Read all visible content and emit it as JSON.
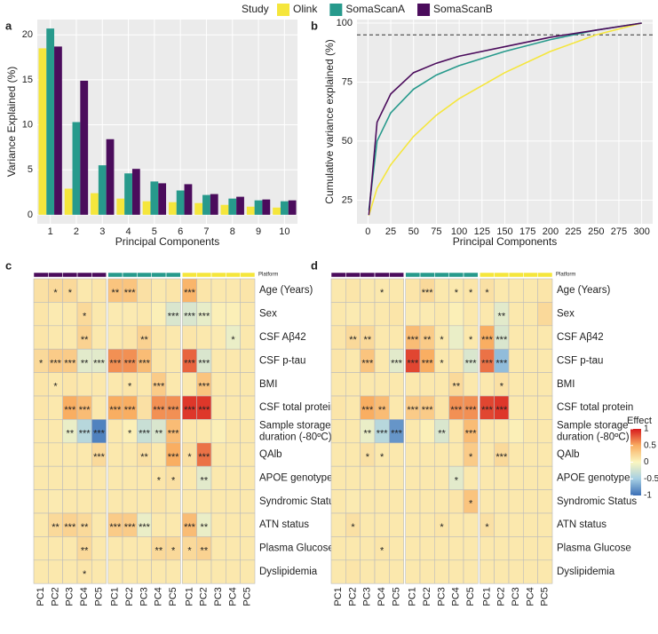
{
  "chart_data": [
    {
      "type": "bar",
      "panel_label": "a",
      "legend_title": "Study",
      "xlabel": "Principal Components",
      "ylabel": "Variance Explained (%)",
      "categories": [
        "1",
        "2",
        "3",
        "4",
        "5",
        "6",
        "7",
        "8",
        "9",
        "10"
      ],
      "series": [
        {
          "name": "Olink",
          "color": "#f5e63c",
          "values": [
            18.5,
            2.9,
            2.4,
            1.8,
            1.5,
            1.4,
            1.3,
            1.1,
            0.9,
            0.8
          ]
        },
        {
          "name": "SomaScanA",
          "color": "#279a8c",
          "values": [
            20.7,
            10.3,
            5.5,
            4.6,
            3.7,
            2.7,
            2.2,
            1.8,
            1.6,
            1.5
          ]
        },
        {
          "name": "SomaScanB",
          "color": "#4b0c5c",
          "values": [
            18.7,
            14.9,
            8.4,
            5.1,
            3.5,
            3.4,
            2.3,
            2.0,
            1.7,
            1.6
          ]
        }
      ],
      "ylim": [
        -1,
        21.7
      ],
      "yticks": [
        0,
        5,
        10,
        15,
        20
      ],
      "grid": true
    },
    {
      "type": "line",
      "panel_label": "b",
      "xlabel": "Principal Components",
      "ylabel": "Cumulative variance explained (%)",
      "x": [
        1,
        10,
        25,
        50,
        75,
        100,
        150,
        200,
        250,
        300
      ],
      "series": [
        {
          "name": "Olink",
          "color": "#f5e63c",
          "values": [
            18.5,
            30,
            40,
            52,
            61,
            68,
            79,
            88,
            95,
            100
          ]
        },
        {
          "name": "SomaScanA",
          "color": "#279a8c",
          "values": [
            20.7,
            50,
            62,
            72,
            78,
            82,
            88,
            93,
            97,
            100
          ]
        },
        {
          "name": "SomaScanB",
          "color": "#4b0c5c",
          "values": [
            18.7,
            58,
            70,
            79,
            83,
            86,
            90,
            94,
            97,
            100
          ]
        }
      ],
      "hline": 95,
      "xlim": [
        -12,
        312
      ],
      "ylim": [
        15,
        101.5
      ],
      "xticks": [
        0,
        25,
        50,
        75,
        100,
        125,
        150,
        175,
        200,
        225,
        250,
        275,
        300
      ],
      "yticks": [
        25,
        50,
        75,
        100
      ],
      "grid": true
    },
    {
      "type": "heatmap",
      "panel_label": "c",
      "group_title": "Platform",
      "group_colors": [
        "#4b0c5c",
        "#279a8c",
        "#f5e63c"
      ],
      "columns": [
        "PC1",
        "PC2",
        "PC3",
        "PC4",
        "PC5",
        "PC1",
        "PC2",
        "PC3",
        "PC4",
        "PC5",
        "PC1",
        "PC2",
        "PC3",
        "PC4",
        "PC5"
      ],
      "rows": [
        "Age (Years)",
        "Sex",
        "CSF Aβ42",
        "CSF p-tau",
        "BMI",
        "CSF total protein",
        "Sample storage duration (-80ºC)",
        "QAlb",
        "APOE genotype",
        "Syndromic Status",
        "ATN status",
        "Plasma Glucose",
        "Dyslipidemia"
      ],
      "values": [
        [
          0.15,
          0.2,
          0.2,
          0.1,
          0.12,
          0.35,
          0.35,
          0.15,
          0.1,
          0.12,
          0.45,
          0.12,
          0.1,
          0.1,
          0.12
        ],
        [
          0.12,
          0.08,
          0.1,
          0.2,
          0.1,
          0.08,
          0.08,
          0.1,
          0.05,
          -0.2,
          -0.2,
          -0.12,
          0.05,
          0.05,
          0.1
        ],
        [
          0.12,
          0.1,
          0.1,
          0.25,
          0.1,
          0.1,
          0.12,
          0.25,
          0.12,
          0.1,
          0.12,
          0.1,
          0.08,
          -0.1,
          0.1
        ],
        [
          0.2,
          0.3,
          0.3,
          -0.15,
          -0.15,
          0.6,
          0.6,
          0.4,
          0.12,
          0.1,
          0.75,
          -0.2,
          0.1,
          0.1,
          0.1
        ],
        [
          0.12,
          0.1,
          0.12,
          0.1,
          0.1,
          0.1,
          0.12,
          0.1,
          0.3,
          0.1,
          0.1,
          0.35,
          0.1,
          0.1,
          0.1
        ],
        [
          0.12,
          0.1,
          0.5,
          0.4,
          0.1,
          0.5,
          0.5,
          0.15,
          0.6,
          0.6,
          0.9,
          0.9,
          0.1,
          0.1,
          0.1
        ],
        [
          0.1,
          0.1,
          -0.1,
          -0.4,
          -0.9,
          0.1,
          0.05,
          -0.3,
          -0.2,
          0.4,
          0.1,
          0.1,
          0.05,
          0.1,
          0.1
        ],
        [
          0.1,
          0.1,
          0.1,
          0.1,
          0.2,
          0.1,
          0.1,
          0.15,
          0.1,
          0.5,
          0.15,
          0.7,
          0.1,
          0.1,
          0.1
        ],
        [
          0.1,
          0.1,
          0.1,
          0.1,
          0.1,
          0.1,
          0.1,
          0.1,
          0.12,
          0.15,
          0.1,
          -0.15,
          0.1,
          0.1,
          0.1
        ],
        [
          0.1,
          0.08,
          0.1,
          0.1,
          0.1,
          0.1,
          0.1,
          0.1,
          0.12,
          0.1,
          0.1,
          0.1,
          0.1,
          0.1,
          0.1
        ],
        [
          0.1,
          0.2,
          0.25,
          0.2,
          0.1,
          0.3,
          0.3,
          -0.1,
          0.1,
          0.1,
          0.4,
          -0.1,
          0.1,
          0.1,
          0.1
        ],
        [
          0.1,
          0.1,
          0.1,
          0.2,
          0.1,
          0.1,
          0.1,
          0.1,
          0.2,
          0.2,
          0.2,
          0.25,
          0.1,
          0.1,
          0.1
        ],
        [
          0.1,
          0.1,
          0.1,
          0.12,
          0.1,
          0.1,
          0.1,
          0.1,
          0.1,
          0.1,
          0.1,
          0.1,
          0.1,
          0.1,
          0.1
        ]
      ],
      "stars": [
        [
          null,
          "*",
          "*",
          null,
          null,
          "**",
          "***",
          null,
          null,
          null,
          "***",
          null,
          null,
          null,
          null
        ],
        [
          null,
          null,
          null,
          "*",
          null,
          null,
          null,
          null,
          null,
          "***",
          "***",
          "***",
          null,
          null,
          null
        ],
        [
          null,
          null,
          null,
          "**",
          null,
          null,
          null,
          "**",
          null,
          null,
          null,
          null,
          null,
          "*",
          null
        ],
        [
          "*",
          "***",
          "***",
          "**",
          "***",
          "***",
          "***",
          "***",
          null,
          null,
          "***",
          "***",
          null,
          null,
          null
        ],
        [
          null,
          "*",
          null,
          null,
          null,
          null,
          "*",
          null,
          "***",
          null,
          null,
          "***",
          null,
          null,
          null
        ],
        [
          null,
          null,
          "***",
          "***",
          null,
          "***",
          "***",
          null,
          "***",
          "***",
          "***",
          "***",
          null,
          null,
          null
        ],
        [
          null,
          null,
          "**",
          "***",
          "***",
          null,
          "*",
          "***",
          "**",
          "***",
          null,
          null,
          null,
          null,
          null
        ],
        [
          null,
          null,
          null,
          null,
          "***",
          null,
          null,
          "**",
          null,
          "***",
          "*",
          "***",
          null,
          null,
          null
        ],
        [
          null,
          null,
          null,
          null,
          null,
          null,
          null,
          null,
          "*",
          "*",
          null,
          "**",
          null,
          null,
          null
        ],
        [
          null,
          null,
          null,
          null,
          null,
          null,
          null,
          null,
          null,
          null,
          null,
          null,
          null,
          null,
          null
        ],
        [
          null,
          "**",
          "***",
          "**",
          null,
          "***",
          "***",
          "***",
          null,
          null,
          "***",
          "**",
          null,
          null,
          null
        ],
        [
          null,
          null,
          null,
          "**",
          null,
          null,
          null,
          null,
          "**",
          "*",
          "*",
          "**",
          null,
          null,
          null
        ],
        [
          null,
          null,
          null,
          "*",
          null,
          null,
          null,
          null,
          null,
          null,
          null,
          null,
          null,
          null,
          null
        ]
      ]
    },
    {
      "type": "heatmap",
      "panel_label": "d",
      "group_title": "Platform",
      "group_colors": [
        "#4b0c5c",
        "#279a8c",
        "#f5e63c"
      ],
      "columns": [
        "PC1",
        "PC2",
        "PC3",
        "PC4",
        "PC5",
        "PC1",
        "PC2",
        "PC3",
        "PC4",
        "PC5",
        "PC1",
        "PC2",
        "PC3",
        "PC4",
        "PC5"
      ],
      "rows": [
        "Age (Years)",
        "Sex",
        "CSF Aβ42",
        "CSF p-tau",
        "BMI",
        "CSF total protein",
        "Sample storage duration (-80ºC)",
        "QAlb",
        "APOE genotype",
        "Syndromic Status",
        "ATN status",
        "Plasma Glucose",
        "Dyslipidemia"
      ],
      "values": [
        [
          0.1,
          0.12,
          0.1,
          0.1,
          0.1,
          0.12,
          0.2,
          0.1,
          0.1,
          0.12,
          0.15,
          0.1,
          0.1,
          0.1,
          0.12
        ],
        [
          0.1,
          0.08,
          0.1,
          0.1,
          0.12,
          0.08,
          0.08,
          0.1,
          0.05,
          0.1,
          0.1,
          -0.15,
          0.1,
          0.1,
          0.2
        ],
        [
          0.12,
          0.2,
          0.2,
          0.1,
          0.1,
          0.4,
          0.3,
          0.1,
          -0.1,
          0.1,
          0.5,
          -0.2,
          0.1,
          0.1,
          0.1
        ],
        [
          0.12,
          0.1,
          0.35,
          0.1,
          -0.15,
          0.85,
          0.5,
          0.1,
          0.1,
          -0.2,
          0.7,
          -0.6,
          0.1,
          0.1,
          0.1
        ],
        [
          0.1,
          0.1,
          0.1,
          0.1,
          0.1,
          0.1,
          0.1,
          0.1,
          0.2,
          0.1,
          0.1,
          0.15,
          0.1,
          0.1,
          0.1
        ],
        [
          0.12,
          0.1,
          0.5,
          0.4,
          0.1,
          0.3,
          0.3,
          0.12,
          0.6,
          0.6,
          0.85,
          0.9,
          0.1,
          0.1,
          0.1
        ],
        [
          0.1,
          0.1,
          -0.1,
          -0.4,
          -0.8,
          0.1,
          0.05,
          -0.2,
          0.1,
          0.4,
          0.1,
          0.1,
          0.05,
          0.1,
          0.1
        ],
        [
          0.1,
          0.1,
          0.15,
          0.1,
          0.1,
          0.1,
          0.1,
          0.1,
          0.1,
          0.3,
          0.1,
          0.2,
          0.1,
          0.1,
          0.1
        ],
        [
          0.1,
          0.1,
          0.1,
          0.1,
          0.1,
          0.1,
          0.1,
          0.1,
          -0.15,
          0.1,
          0.1,
          0.1,
          0.1,
          0.1,
          0.1
        ],
        [
          0.1,
          0.08,
          0.1,
          0.1,
          0.1,
          0.1,
          0.1,
          0.1,
          0.12,
          0.35,
          0.1,
          0.1,
          0.1,
          0.1,
          0.1
        ],
        [
          0.1,
          0.15,
          0.1,
          0.1,
          0.1,
          0.1,
          0.1,
          0.12,
          0.1,
          0.1,
          0.15,
          0.1,
          0.1,
          0.1,
          0.1
        ],
        [
          0.1,
          0.1,
          0.1,
          0.12,
          0.1,
          0.1,
          0.1,
          0.1,
          0.1,
          0.1,
          0.1,
          0.1,
          0.1,
          0.1,
          0.1
        ],
        [
          0.1,
          0.12,
          0.1,
          0.1,
          0.1,
          0.1,
          0.1,
          0.1,
          0.1,
          0.1,
          0.1,
          0.1,
          0.1,
          0.1,
          0.1
        ]
      ],
      "stars": [
        [
          null,
          null,
          null,
          "*",
          null,
          null,
          "***",
          null,
          "*",
          "*",
          "*",
          null,
          null,
          null,
          null
        ],
        [
          null,
          null,
          null,
          null,
          null,
          null,
          null,
          null,
          null,
          null,
          null,
          "**",
          null,
          null,
          null
        ],
        [
          null,
          "**",
          "**",
          null,
          null,
          "***",
          "**",
          "*",
          null,
          "*",
          "***",
          "***",
          null,
          null,
          null
        ],
        [
          null,
          null,
          "***",
          null,
          "***",
          "***",
          "***",
          "*",
          null,
          "***",
          "***",
          "***",
          null,
          null,
          null
        ],
        [
          null,
          null,
          null,
          null,
          null,
          null,
          null,
          null,
          "**",
          null,
          null,
          "*",
          null,
          null,
          null
        ],
        [
          null,
          null,
          "***",
          "**",
          null,
          "***",
          "***",
          null,
          "***",
          "***",
          "***",
          "***",
          null,
          null,
          null
        ],
        [
          null,
          null,
          "**",
          "***",
          "***",
          null,
          null,
          "**",
          null,
          "***",
          null,
          null,
          null,
          null,
          null
        ],
        [
          null,
          null,
          "*",
          "*",
          null,
          null,
          null,
          null,
          null,
          "*",
          null,
          "***",
          null,
          null,
          null
        ],
        [
          null,
          null,
          null,
          null,
          null,
          null,
          null,
          null,
          "*",
          null,
          null,
          null,
          null,
          null,
          null
        ],
        [
          null,
          null,
          null,
          null,
          null,
          null,
          null,
          null,
          null,
          "*",
          null,
          null,
          null,
          null,
          null
        ],
        [
          null,
          "*",
          null,
          null,
          null,
          null,
          null,
          "*",
          null,
          null,
          "*",
          null,
          null,
          null,
          null
        ],
        [
          null,
          null,
          null,
          "*",
          null,
          null,
          null,
          null,
          null,
          null,
          null,
          null,
          null,
          null,
          null
        ],
        [
          null,
          null,
          null,
          null,
          null,
          null,
          null,
          null,
          null,
          null,
          null,
          null,
          null,
          null,
          null
        ]
      ],
      "legend_title": "Effect",
      "colorscale": [
        "#3b6fb6",
        "#a6cfe3",
        "#fbf6c0",
        "#f9ae62",
        "#d7191c"
      ],
      "colorbar_ticks": [
        1,
        0.5,
        0,
        -0.5,
        -1
      ]
    }
  ]
}
